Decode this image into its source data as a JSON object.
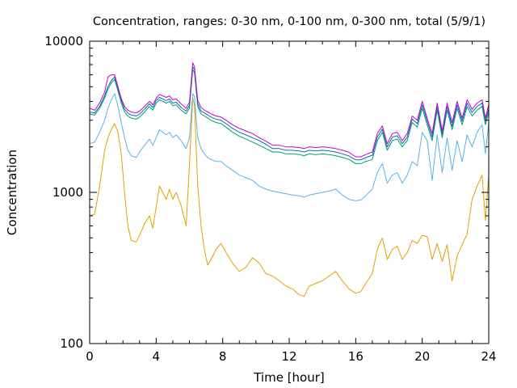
{
  "chart_data": {
    "type": "line",
    "title": "Concentration, ranges: 0-30 nm, 0-100 nm, 0-300 nm, total (5/9/1)",
    "xlabel": "Time [hour]",
    "ylabel": "Concentration",
    "xlim": [
      0,
      24
    ],
    "ylim": [
      100,
      10000
    ],
    "yscale": "log",
    "grid": false,
    "legend": "none",
    "x_ticks": [
      0,
      4,
      8,
      12,
      16,
      20,
      24
    ],
    "x_tick_labels": [
      "0",
      "4",
      "8",
      "12",
      "16",
      "20",
      "24"
    ],
    "y_ticks": [
      100,
      1000,
      10000
    ],
    "y_tick_labels": [
      "100",
      "1000",
      "10000"
    ],
    "series": [
      {
        "color": "#e69f00",
        "x": [
          0,
          0.3,
          0.6,
          0.9,
          1.1,
          1.3,
          1.5,
          1.7,
          1.9,
          2.1,
          2.3,
          2.5,
          2.8,
          3.0,
          3.3,
          3.6,
          3.8,
          4.0,
          4.2,
          4.4,
          4.6,
          4.8,
          5.0,
          5.2,
          5.5,
          5.8,
          6.0,
          6.2,
          6.3,
          6.5,
          6.7,
          6.9,
          7.1,
          7.3,
          7.6,
          7.9,
          8.2,
          8.6,
          9.0,
          9.4,
          9.8,
          10.2,
          10.6,
          11.0,
          11.4,
          11.8,
          12.2,
          12.6,
          12.9,
          13.2,
          13.6,
          14.0,
          14.4,
          14.8,
          15.2,
          15.6,
          16.0,
          16.3,
          16.6,
          17.0,
          17.3,
          17.6,
          17.9,
          18.2,
          18.5,
          18.8,
          19.1,
          19.4,
          19.7,
          20.0,
          20.3,
          20.6,
          20.9,
          21.2,
          21.5,
          21.8,
          22.1,
          22.4,
          22.7,
          23.0,
          23.3,
          23.6,
          23.8,
          24.0
        ],
        "y": [
          700,
          720,
          1100,
          1900,
          2300,
          2600,
          2850,
          2500,
          1800,
          1000,
          600,
          480,
          470,
          520,
          620,
          700,
          580,
          800,
          1100,
          1000,
          900,
          1050,
          900,
          1000,
          820,
          600,
          1500,
          4200,
          3800,
          1100,
          600,
          420,
          330,
          360,
          420,
          460,
          400,
          340,
          300,
          320,
          370,
          340,
          290,
          280,
          260,
          240,
          230,
          210,
          205,
          240,
          250,
          260,
          280,
          300,
          260,
          230,
          215,
          220,
          250,
          290,
          420,
          500,
          360,
          420,
          440,
          360,
          400,
          480,
          460,
          520,
          510,
          360,
          460,
          350,
          450,
          260,
          380,
          450,
          530,
          900,
          1100,
          1300,
          650,
          1300
        ]
      },
      {
        "color": "#56b4e9",
        "x": [
          0,
          0.3,
          0.6,
          0.9,
          1.1,
          1.3,
          1.5,
          1.7,
          1.9,
          2.1,
          2.3,
          2.5,
          2.8,
          3.0,
          3.3,
          3.6,
          3.8,
          4.0,
          4.2,
          4.4,
          4.6,
          4.8,
          5.0,
          5.2,
          5.5,
          5.8,
          6.0,
          6.2,
          6.3,
          6.5,
          6.7,
          6.9,
          7.1,
          7.3,
          7.6,
          7.9,
          8.2,
          8.6,
          9.0,
          9.4,
          9.8,
          10.2,
          10.6,
          11.0,
          11.4,
          11.8,
          12.2,
          12.6,
          12.9,
          13.2,
          13.6,
          14.0,
          14.4,
          14.8,
          15.2,
          15.6,
          16.0,
          16.3,
          16.6,
          17.0,
          17.3,
          17.6,
          17.9,
          18.2,
          18.5,
          18.8,
          19.1,
          19.4,
          19.7,
          20.0,
          20.3,
          20.6,
          20.9,
          21.2,
          21.5,
          21.8,
          22.1,
          22.4,
          22.7,
          23.0,
          23.3,
          23.6,
          23.8,
          24.0
        ],
        "y": [
          2100,
          2150,
          2500,
          3000,
          3600,
          4100,
          4500,
          3700,
          2900,
          2300,
          1900,
          1750,
          1700,
          1850,
          2050,
          2250,
          2050,
          2300,
          2600,
          2500,
          2400,
          2500,
          2300,
          2400,
          2200,
          1950,
          2300,
          4500,
          4300,
          2300,
          1950,
          1800,
          1700,
          1650,
          1600,
          1600,
          1500,
          1400,
          1300,
          1250,
          1200,
          1100,
          1050,
          1020,
          1000,
          980,
          960,
          950,
          930,
          960,
          980,
          1000,
          1020,
          1050,
          960,
          900,
          880,
          890,
          950,
          1050,
          1350,
          1550,
          1150,
          1300,
          1350,
          1150,
          1300,
          1600,
          1500,
          2500,
          2200,
          1200,
          2400,
          1350,
          2300,
          1400,
          2200,
          1600,
          2400,
          2000,
          2500,
          2800,
          1800,
          2900
        ]
      },
      {
        "color": "#009e73",
        "x": [
          0,
          0.3,
          0.6,
          0.9,
          1.1,
          1.3,
          1.5,
          1.7,
          1.9,
          2.1,
          2.3,
          2.5,
          2.8,
          3.0,
          3.3,
          3.6,
          3.8,
          4.0,
          4.2,
          4.4,
          4.6,
          4.8,
          5.0,
          5.2,
          5.5,
          5.8,
          6.0,
          6.2,
          6.3,
          6.5,
          6.7,
          6.9,
          7.1,
          7.3,
          7.6,
          7.9,
          8.2,
          8.6,
          9.0,
          9.4,
          9.8,
          10.2,
          10.6,
          11.0,
          11.4,
          11.8,
          12.2,
          12.6,
          12.9,
          13.2,
          13.6,
          14.0,
          14.4,
          14.8,
          15.2,
          15.6,
          16.0,
          16.3,
          16.6,
          17.0,
          17.3,
          17.6,
          17.9,
          18.2,
          18.5,
          18.8,
          19.1,
          19.4,
          19.7,
          20.0,
          20.3,
          20.6,
          20.9,
          21.2,
          21.5,
          21.8,
          22.1,
          22.4,
          22.7,
          23.0,
          23.3,
          23.6,
          23.8,
          24.0
        ],
        "y": [
          3300,
          3250,
          3600,
          4200,
          4800,
          5300,
          5600,
          4700,
          3900,
          3400,
          3200,
          3100,
          3050,
          3150,
          3400,
          3700,
          3500,
          3900,
          4100,
          4000,
          3900,
          4000,
          3750,
          3800,
          3500,
          3300,
          3600,
          6500,
          6200,
          3700,
          3300,
          3200,
          3100,
          3000,
          2900,
          2850,
          2700,
          2500,
          2350,
          2250,
          2150,
          2050,
          1950,
          1850,
          1850,
          1800,
          1800,
          1780,
          1750,
          1800,
          1780,
          1800,
          1780,
          1750,
          1700,
          1650,
          1550,
          1550,
          1600,
          1650,
          2200,
          2500,
          1900,
          2200,
          2250,
          2000,
          2200,
          2900,
          2700,
          3600,
          2800,
          2200,
          3500,
          2300,
          3500,
          2600,
          3600,
          2800,
          3700,
          3200,
          3500,
          3700,
          2800,
          3400
        ]
      },
      {
        "color": "#0072b2",
        "x": [
          0,
          0.3,
          0.6,
          0.9,
          1.1,
          1.3,
          1.5,
          1.7,
          1.9,
          2.1,
          2.3,
          2.5,
          2.8,
          3.0,
          3.3,
          3.6,
          3.8,
          4.0,
          4.2,
          4.4,
          4.6,
          4.8,
          5.0,
          5.2,
          5.5,
          5.8,
          6.0,
          6.2,
          6.3,
          6.5,
          6.7,
          6.9,
          7.1,
          7.3,
          7.6,
          7.9,
          8.2,
          8.6,
          9.0,
          9.4,
          9.8,
          10.2,
          10.6,
          11.0,
          11.4,
          11.8,
          12.2,
          12.6,
          12.9,
          13.2,
          13.6,
          14.0,
          14.4,
          14.8,
          15.2,
          15.6,
          16.0,
          16.3,
          16.6,
          17.0,
          17.3,
          17.6,
          17.9,
          18.2,
          18.5,
          18.8,
          19.1,
          19.4,
          19.7,
          20.0,
          20.3,
          20.6,
          20.9,
          21.2,
          21.5,
          21.8,
          22.1,
          22.4,
          22.7,
          23.0,
          23.3,
          23.6,
          23.8,
          24.0
        ],
        "y": [
          3400,
          3350,
          3700,
          4350,
          5000,
          5500,
          5800,
          4850,
          4050,
          3550,
          3350,
          3250,
          3200,
          3300,
          3550,
          3850,
          3650,
          4050,
          4250,
          4150,
          4050,
          4150,
          3900,
          3950,
          3650,
          3450,
          3750,
          6800,
          6500,
          3850,
          3450,
          3350,
          3250,
          3150,
          3050,
          3000,
          2850,
          2650,
          2500,
          2400,
          2300,
          2200,
          2080,
          1950,
          1950,
          1900,
          1900,
          1880,
          1850,
          1900,
          1880,
          1900,
          1880,
          1850,
          1800,
          1740,
          1640,
          1640,
          1700,
          1760,
          2320,
          2620,
          2000,
          2320,
          2370,
          2100,
          2320,
          3050,
          2850,
          3800,
          2950,
          2320,
          3700,
          2420,
          3700,
          2740,
          3800,
          2950,
          3900,
          3380,
          3700,
          3900,
          2950,
          3600
        ]
      },
      {
        "color": "#cc00cc",
        "x": [
          0,
          0.3,
          0.6,
          0.9,
          1.1,
          1.3,
          1.5,
          1.7,
          1.9,
          2.1,
          2.3,
          2.5,
          2.8,
          3.0,
          3.3,
          3.6,
          3.8,
          4.0,
          4.2,
          4.4,
          4.6,
          4.8,
          5.0,
          5.2,
          5.5,
          5.8,
          6.0,
          6.2,
          6.3,
          6.5,
          6.7,
          6.9,
          7.1,
          7.3,
          7.6,
          7.9,
          8.2,
          8.6,
          9.0,
          9.4,
          9.8,
          10.2,
          10.6,
          11.0,
          11.4,
          11.8,
          12.2,
          12.6,
          12.9,
          13.2,
          13.6,
          14.0,
          14.4,
          14.8,
          15.2,
          15.6,
          16.0,
          16.3,
          16.6,
          17.0,
          17.3,
          17.6,
          17.9,
          18.2,
          18.5,
          18.8,
          19.1,
          19.4,
          19.7,
          20.0,
          20.3,
          20.6,
          20.9,
          21.2,
          21.5,
          21.8,
          22.1,
          22.4,
          22.7,
          23.0,
          23.3,
          23.6,
          23.8,
          24.0
        ],
        "y": [
          3600,
          3500,
          3900,
          4600,
          5800,
          6000,
          6000,
          5000,
          4200,
          3700,
          3500,
          3400,
          3350,
          3450,
          3700,
          4000,
          3800,
          4200,
          4450,
          4350,
          4250,
          4350,
          4100,
          4150,
          3850,
          3600,
          3950,
          7200,
          6800,
          4050,
          3650,
          3500,
          3400,
          3300,
          3200,
          3150,
          3000,
          2800,
          2650,
          2550,
          2450,
          2300,
          2180,
          2050,
          2050,
          2000,
          2000,
          1980,
          1950,
          2000,
          1980,
          2000,
          1980,
          1950,
          1900,
          1840,
          1720,
          1720,
          1780,
          1850,
          2450,
          2750,
          2100,
          2450,
          2500,
          2200,
          2450,
          3200,
          3000,
          4000,
          3100,
          2450,
          3900,
          2550,
          3900,
          2900,
          4000,
          3100,
          4100,
          3550,
          3900,
          4100,
          3100,
          3800
        ]
      }
    ]
  }
}
